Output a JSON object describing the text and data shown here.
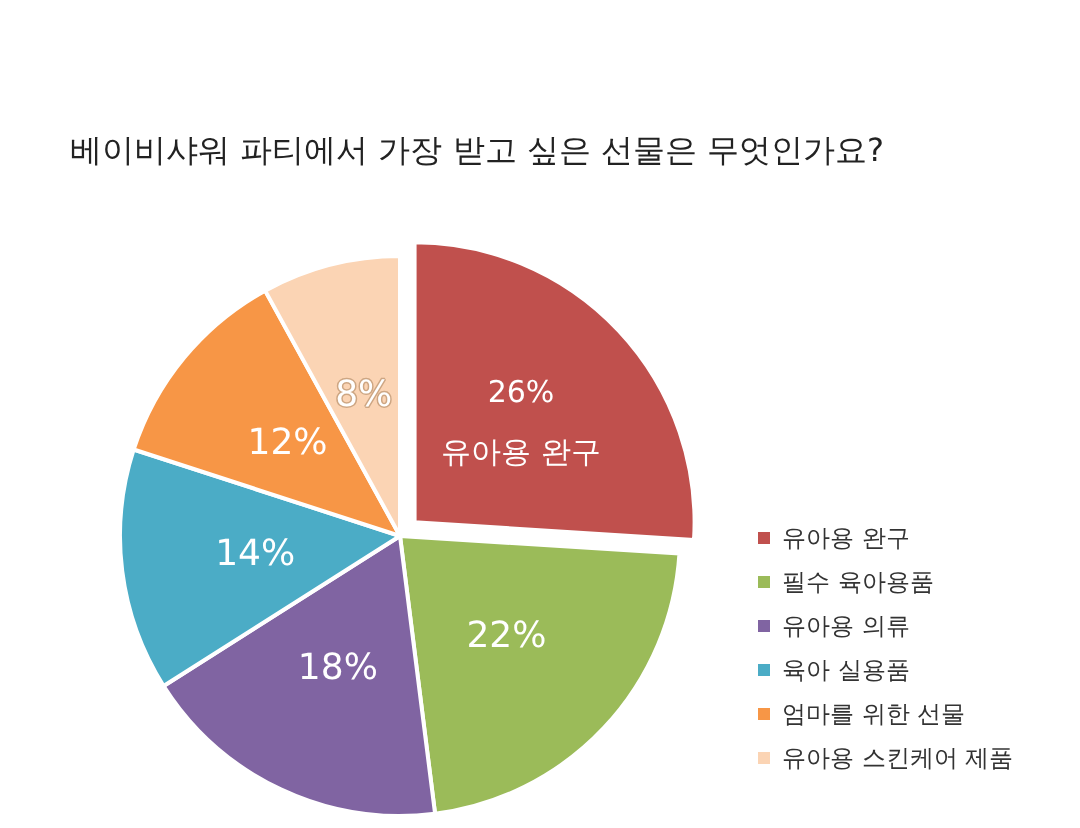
{
  "chart_data": {
    "type": "pie",
    "title": "베이비샤워 파티에서 가장 받고 싶은 선물은 무엇인가요?",
    "categories": [
      "유아용 완구",
      "필수 육아용품",
      "유아용 의류",
      "육아 실용품",
      "엄마를 위한 선물",
      "유아용 스킨케어 제품"
    ],
    "values": [
      26,
      22,
      18,
      14,
      12,
      8
    ],
    "colors": [
      "#c0504d",
      "#9bbb59",
      "#8064a2",
      "#4bacc6",
      "#f79646",
      "#fbd4b4"
    ],
    "value_labels": [
      "26%\n유아용 완구",
      "22%",
      "18%",
      "14%",
      "12%",
      "8%"
    ],
    "legend": "right"
  }
}
